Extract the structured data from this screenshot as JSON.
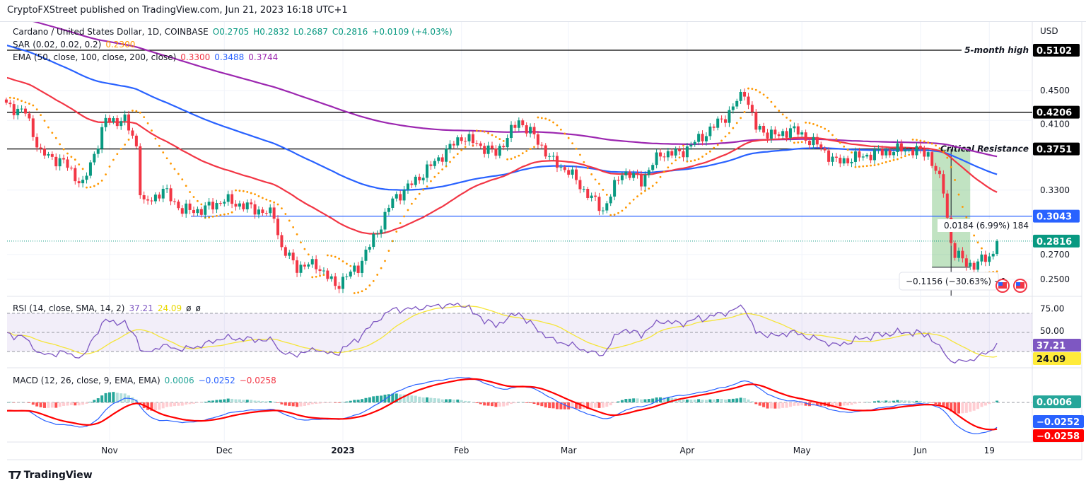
{
  "published": "CryptoFXStreet published on TradingView.com, Jun 21, 2023 16:18 UTC+1",
  "footer_brand": "TradingView",
  "legend": {
    "symbol": "Cardano / United States Dollar, 1D, COINBASE",
    "open": "O0.2705",
    "high": "H0.2832",
    "low": "L0.2687",
    "close": "C0.2816",
    "change": "+0.0109 (+4.03%)",
    "sar_label": "SAR (0.02, 0.02, 0.2)",
    "sar_value": "0.2300",
    "ema_label": "EMA (50, close, 100, close, 200, close)",
    "ema50": "0.3300",
    "ema100": "0.3488",
    "ema200": "0.3744",
    "rsi_label": "RSI (14, close, SMA, 14, 2)",
    "rsi_value": "37.21",
    "rsi_sma": "24.09",
    "rsi_extra1": "ø",
    "rsi_extra2": "ø",
    "macd_label": "MACD (12, 26, close, 9, EMA, EMA)",
    "macd_hist": "0.0006",
    "macd_line": "−0.0252",
    "macd_signal": "−0.0258"
  },
  "colors": {
    "up": "#089981",
    "down": "#f23645",
    "ema50": "#f23645",
    "ema100": "#2962ff",
    "ema200": "#9c27b0",
    "sar": "#ff9800",
    "rsi": "#7e57c2",
    "rsi_sma": "#f5e53a"
  },
  "chart_data": {
    "type": "candlestick",
    "title": "Cardano / United States Dollar, 1D, COINBASE",
    "currency": "USD",
    "scale": "log",
    "ylim": [
      0.235,
      0.53
    ],
    "start_date": "2022-10-05",
    "end_date": "2023-06-21",
    "last_candle": {
      "open": 0.2705,
      "high": 0.2832,
      "low": 0.2687,
      "close": 0.2816
    },
    "close_path": [
      [
        "2022-10-05",
        0.43
      ],
      [
        "2022-10-10",
        0.42
      ],
      [
        "2022-10-14",
        0.37
      ],
      [
        "2022-10-20",
        0.36
      ],
      [
        "2022-10-25",
        0.335
      ],
      [
        "2022-10-28",
        0.37
      ],
      [
        "2022-10-31",
        0.41
      ],
      [
        "2022-11-05",
        0.41
      ],
      [
        "2022-11-08",
        0.38
      ],
      [
        "2022-11-09",
        0.33
      ],
      [
        "2022-11-10",
        0.315
      ],
      [
        "2022-11-15",
        0.33
      ],
      [
        "2022-11-20",
        0.31
      ],
      [
        "2022-11-25",
        0.31
      ],
      [
        "2022-12-01",
        0.32
      ],
      [
        "2022-12-10",
        0.31
      ],
      [
        "2022-12-14",
        0.305
      ],
      [
        "2022-12-16",
        0.275
      ],
      [
        "2022-12-20",
        0.26
      ],
      [
        "2022-12-25",
        0.262
      ],
      [
        "2022-12-30",
        0.245
      ],
      [
        "2023-01-05",
        0.26
      ],
      [
        "2023-01-10",
        0.29
      ],
      [
        "2023-01-14",
        0.32
      ],
      [
        "2023-01-20",
        0.34
      ],
      [
        "2023-01-25",
        0.36
      ],
      [
        "2023-02-01",
        0.39
      ],
      [
        "2023-02-10",
        0.37
      ],
      [
        "2023-02-16",
        0.41
      ],
      [
        "2023-02-20",
        0.39
      ],
      [
        "2023-02-25",
        0.36
      ],
      [
        "2023-03-01",
        0.35
      ],
      [
        "2023-03-05",
        0.33
      ],
      [
        "2023-03-10",
        0.31
      ],
      [
        "2023-03-15",
        0.35
      ],
      [
        "2023-03-20",
        0.34
      ],
      [
        "2023-03-25",
        0.37
      ],
      [
        "2023-03-30",
        0.37
      ],
      [
        "2023-04-05",
        0.39
      ],
      [
        "2023-04-12",
        0.42
      ],
      [
        "2023-04-16",
        0.45
      ],
      [
        "2023-04-19",
        0.4
      ],
      [
        "2023-04-25",
        0.39
      ],
      [
        "2023-04-28",
        0.4
      ],
      [
        "2023-05-05",
        0.38
      ],
      [
        "2023-05-10",
        0.36
      ],
      [
        "2023-05-20",
        0.37
      ],
      [
        "2023-05-28",
        0.375
      ],
      [
        "2023-06-03",
        0.37
      ],
      [
        "2023-06-05",
        0.35
      ],
      [
        "2023-06-07",
        0.33
      ],
      [
        "2023-06-09",
        0.28
      ],
      [
        "2023-06-10",
        0.27
      ],
      [
        "2023-06-15",
        0.26
      ],
      [
        "2023-06-18",
        0.268
      ],
      [
        "2023-06-20",
        0.2705
      ],
      [
        "2023-06-21",
        0.2816
      ]
    ],
    "price_ticks": [
      "0.4500",
      "0.4100",
      "0.3300",
      "0.2700",
      "0.2500"
    ],
    "time_ticks": [
      {
        "date": "2022-11-01",
        "label": "Nov",
        "bold": false
      },
      {
        "date": "2022-12-01",
        "label": "Dec",
        "bold": false
      },
      {
        "date": "2023-01-01",
        "label": "2023",
        "bold": true
      },
      {
        "date": "2023-02-01",
        "label": "Feb",
        "bold": false
      },
      {
        "date": "2023-03-01",
        "label": "Mar",
        "bold": false
      },
      {
        "date": "2023-04-01",
        "label": "Apr",
        "bold": false
      },
      {
        "date": "2023-05-01",
        "label": "May",
        "bold": false
      },
      {
        "date": "2023-06-01",
        "label": "Jun",
        "bold": false
      },
      {
        "date": "2023-06-19",
        "label": "19",
        "bold": false
      }
    ],
    "levels": [
      {
        "value": 0.5102,
        "label": "0.5102",
        "note": "5-month high",
        "color": "#000000"
      },
      {
        "value": 0.4206,
        "label": "0.4206",
        "note": "",
        "color": "#000000"
      },
      {
        "value": 0.3751,
        "label": "0.3751",
        "note": "Critical Resistance",
        "color": "#000000"
      },
      {
        "value": 0.3043,
        "label": "0.3043",
        "note": "",
        "color": "#2962ff"
      }
    ],
    "last_price_label": "0.2816",
    "measure": {
      "from_date": "2023-06-04",
      "to_date": "2023-06-14",
      "top": 0.3751,
      "bottom": 0.2595,
      "up_label": "0.0184 (6.99%) 184",
      "down_label": "−0.1156 (−30.63%) −1"
    },
    "rsi": {
      "ticks": [
        "75.00",
        "50.00"
      ],
      "bands": [
        70,
        50,
        30
      ],
      "value_label": "37.21",
      "sma_label": "24.09"
    },
    "macd": {
      "hist_label": "0.0006",
      "macd_label": "−0.0252",
      "signal_label": "−0.0258"
    }
  }
}
